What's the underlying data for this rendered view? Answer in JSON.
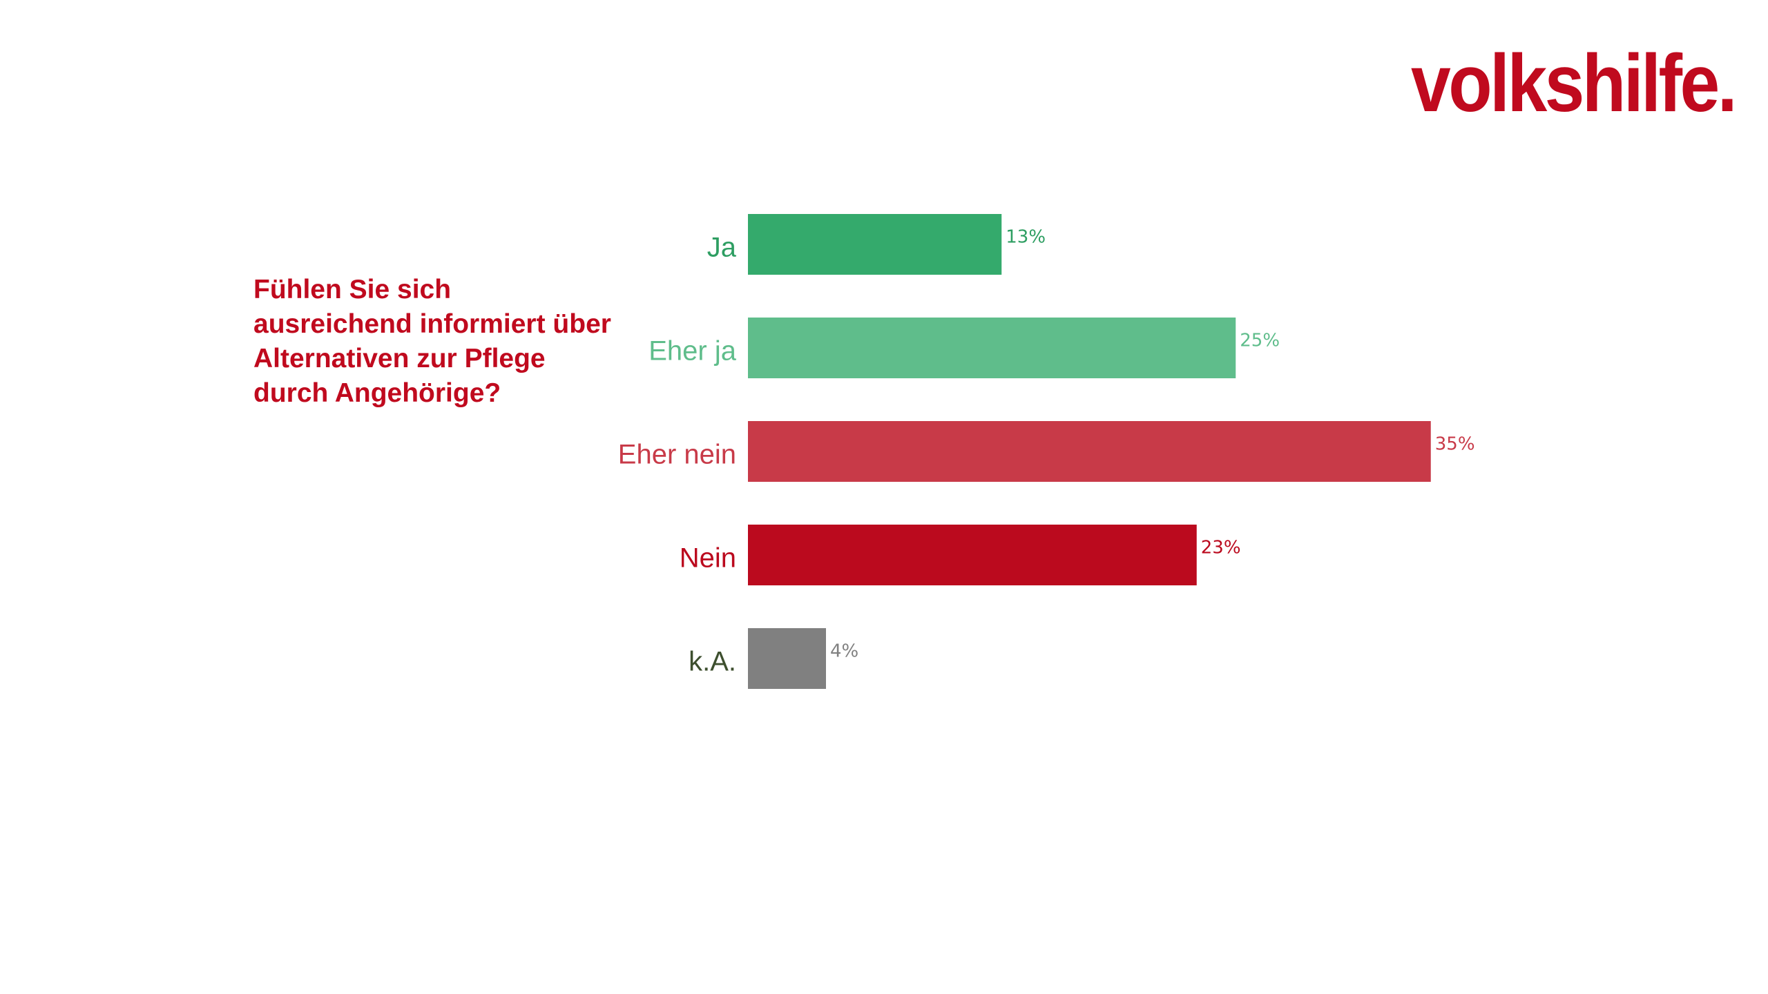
{
  "brand": {
    "logo_text": "volkshilfe.",
    "color": "#c00a1e"
  },
  "question": {
    "text": "Fühlen Sie sich ausreichend informiert über Alternativen zur Pflege durch Angehörige?",
    "color": "#c00a1e"
  },
  "chart_data": {
    "type": "bar",
    "orientation": "horizontal",
    "title": "",
    "xlabel": "",
    "ylabel": "",
    "xlim": [
      0,
      35
    ],
    "grid": false,
    "legend": "none",
    "categories": [
      "Ja",
      "Eher ja",
      "Eher nein",
      "Nein",
      "k.A."
    ],
    "values": [
      13,
      25,
      35,
      23,
      4
    ],
    "value_labels": [
      "13%",
      "25%",
      "35%",
      "23%",
      "4%"
    ],
    "bar_colors": [
      "#34aa6c",
      "#5fbd8b",
      "#c83a48",
      "#bb0a1e",
      "#808080"
    ],
    "label_colors": [
      "#2e9e62",
      "#5fbd8b",
      "#c83a48",
      "#bb0a1e",
      "#3d4f2e"
    ],
    "value_label_colors": [
      "#2e9e62",
      "#5fbd8b",
      "#c83a48",
      "#bb0a1e",
      "#808080"
    ]
  }
}
